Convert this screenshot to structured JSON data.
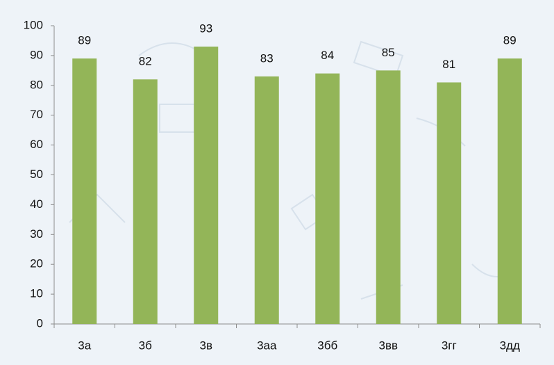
{
  "chart_data": {
    "type": "bar",
    "categories": [
      "3а",
      "3б",
      "3в",
      "3аа",
      "3бб",
      "3вв",
      "3гг",
      "3дд"
    ],
    "values": [
      89,
      82,
      93,
      83,
      84,
      85,
      81,
      89
    ],
    "color": "#93b558",
    "ylim": [
      0,
      100
    ],
    "yticks": [
      0,
      10,
      20,
      30,
      40,
      50,
      60,
      70,
      80,
      90,
      100
    ],
    "grid": false
  }
}
